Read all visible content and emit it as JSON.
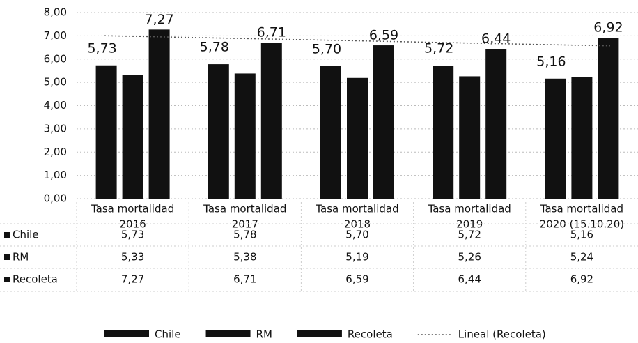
{
  "chart_data": {
    "type": "bar",
    "categories": [
      [
        "Tasa mortalidad",
        "2016"
      ],
      [
        "Tasa mortalidad",
        "2017"
      ],
      [
        "Tasa mortalidad",
        "2018"
      ],
      [
        "Tasa mortalidad",
        "2019"
      ],
      [
        "Tasa mortalidad",
        "2020 (15.10.20)"
      ]
    ],
    "series": [
      {
        "name": "Chile",
        "color": "#111111",
        "values": [
          5.73,
          5.78,
          5.7,
          5.72,
          5.16
        ],
        "value_labels": [
          "5,73",
          "5,78",
          "5,70",
          "5,72",
          "5,16"
        ],
        "data_labels": true
      },
      {
        "name": "RM",
        "color": "#111111",
        "values": [
          5.33,
          5.38,
          5.19,
          5.26,
          5.24
        ],
        "value_labels": [
          "5,33",
          "5,38",
          "5,19",
          "5,26",
          "5,24"
        ],
        "data_labels": false
      },
      {
        "name": "Recoleta",
        "color": "#111111",
        "values": [
          7.27,
          6.71,
          6.59,
          6.44,
          6.92
        ],
        "value_labels": [
          "7,27",
          "6,71",
          "6,59",
          "6,44",
          "6,92"
        ],
        "data_labels": true
      }
    ],
    "trendline": {
      "name": "Lineal (Recoleta)",
      "of": "Recoleta"
    },
    "ylim": [
      0,
      8
    ],
    "yticks": [
      {
        "value": 0,
        "label": "0,00"
      },
      {
        "value": 1,
        "label": "1,00"
      },
      {
        "value": 2,
        "label": "2,00"
      },
      {
        "value": 3,
        "label": "3,00"
      },
      {
        "value": 4,
        "label": "4,00"
      },
      {
        "value": 5,
        "label": "5,00"
      },
      {
        "value": 6,
        "label": "6,00"
      },
      {
        "value": 7,
        "label": "7,00"
      },
      {
        "value": 8,
        "label": "8,00"
      }
    ],
    "grid": true,
    "data_table": true
  }
}
